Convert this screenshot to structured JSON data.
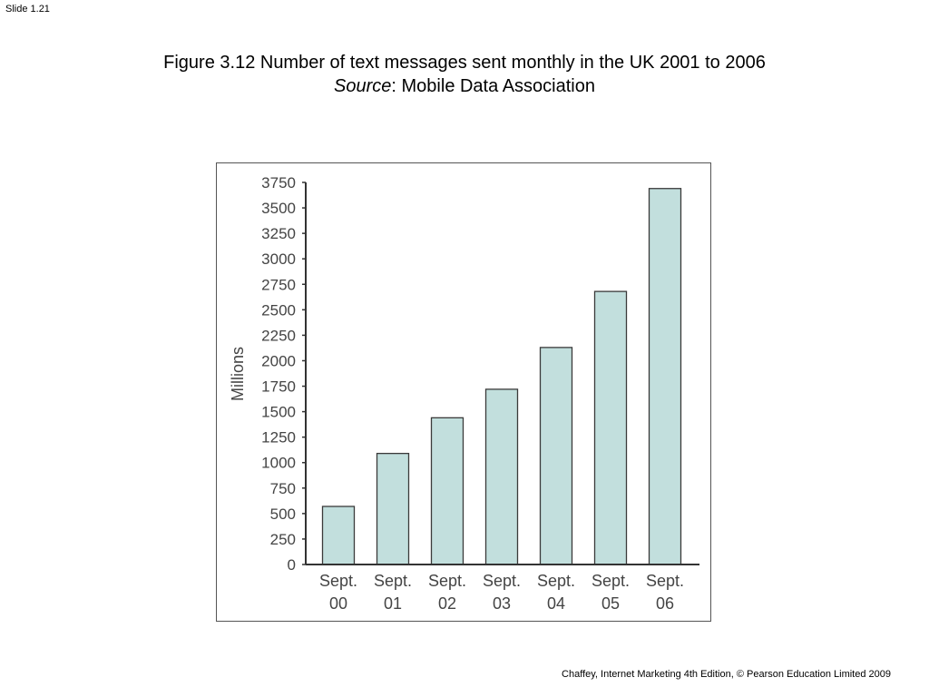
{
  "slide_label": "Slide 1.21",
  "title": {
    "line1": "Figure 3.12  Number of text messages sent monthly in the UK 2001 to 2006",
    "source_italic": "Source",
    "source_rest": ": Mobile Data Association"
  },
  "footer": "Chaffey, Internet Marketing 4th Edition, © Pearson Education Limited 2009",
  "colors": {
    "bar_fill": "#c2dfdd",
    "bar_stroke": "#3a3a3a",
    "axis": "#333333",
    "text": "#444444"
  },
  "chart_data": {
    "type": "bar",
    "categories": [
      [
        "Sept.",
        "00"
      ],
      [
        "Sept.",
        "01"
      ],
      [
        "Sept.",
        "02"
      ],
      [
        "Sept.",
        "03"
      ],
      [
        "Sept.",
        "04"
      ],
      [
        "Sept.",
        "05"
      ],
      [
        "Sept.",
        "06"
      ]
    ],
    "values": [
      570,
      1090,
      1440,
      1720,
      2130,
      2680,
      3690
    ],
    "ylabel": "Millions",
    "xlabel": "",
    "ylim": [
      0,
      3750
    ],
    "yticks": [
      0,
      250,
      500,
      750,
      1000,
      1250,
      1500,
      1750,
      2000,
      2250,
      2500,
      2750,
      3000,
      3250,
      3500,
      3750
    ],
    "grid": false,
    "legend": "none"
  }
}
